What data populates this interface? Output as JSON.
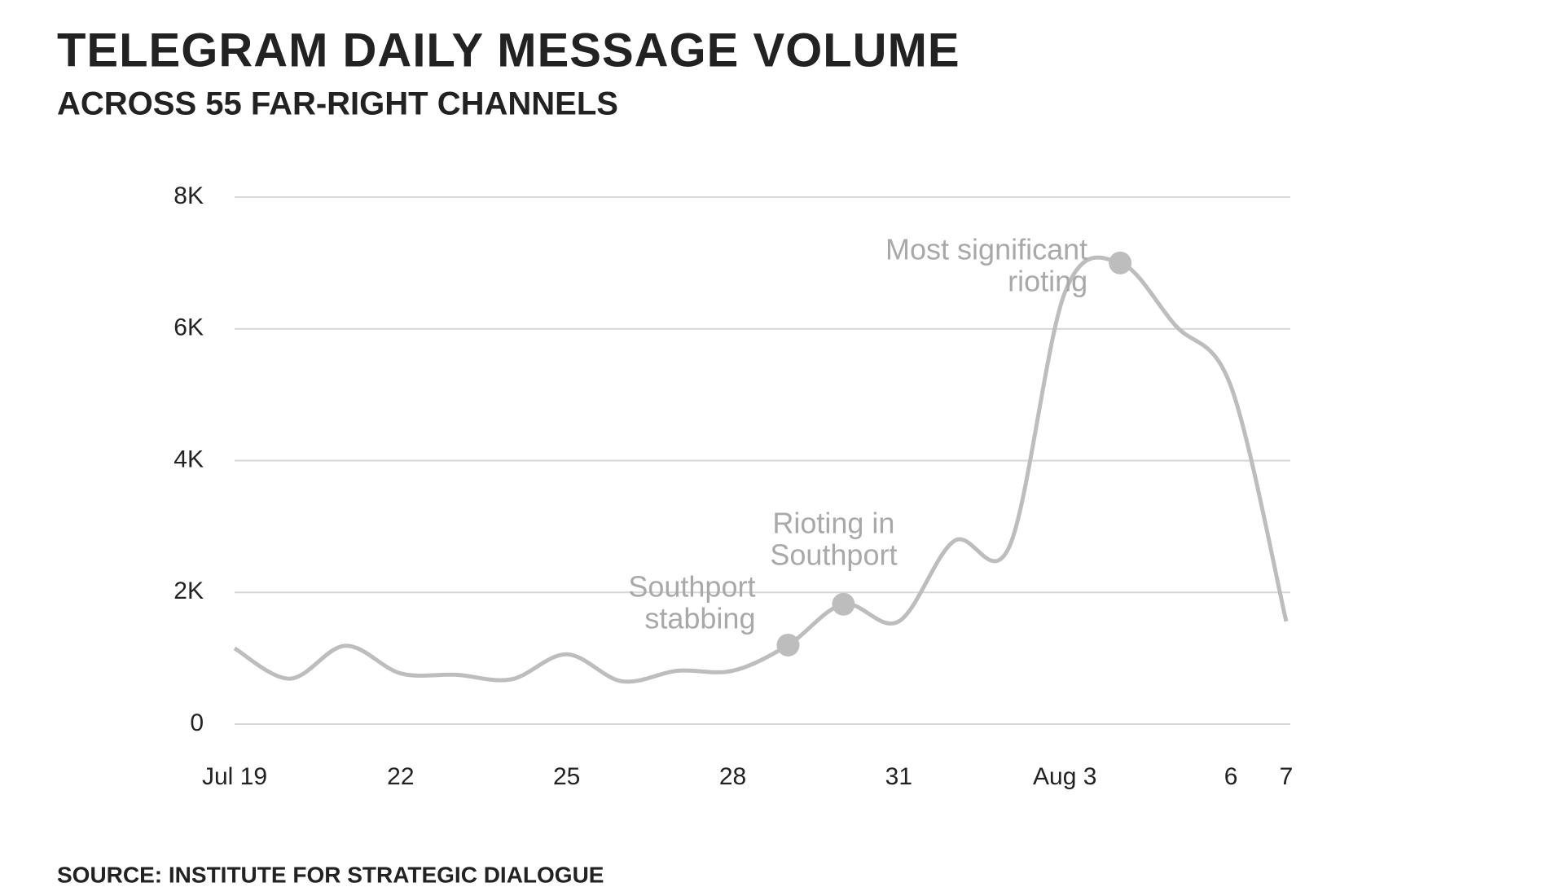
{
  "chart_data": {
    "type": "line",
    "title": "TELEGRAM DAILY MESSAGE VOLUME",
    "subtitle": "ACROSS 55 FAR-RIGHT CHANNELS",
    "source": "SOURCE: INSTITUTE FOR STRATEGIC DIALOGUE",
    "categories": [
      "Jul 19",
      null,
      null,
      "22",
      null,
      null,
      "25",
      null,
      null,
      "28",
      null,
      null,
      "31",
      null,
      null,
      "Aug 3",
      null,
      null,
      "6",
      "7"
    ],
    "series": [
      {
        "color": "#bdbdbd",
        "values": [
          1150,
          690,
          1190,
          770,
          750,
          680,
          1060,
          650,
          810,
          810,
          1200,
          1820,
          1560,
          2780,
          2700,
          6550,
          7000,
          6050,
          5130,
          1560
        ]
      }
    ],
    "annotations": [
      {
        "point": 10,
        "lines": [
          "Southport",
          "stabbing"
        ]
      },
      {
        "point": 11,
        "lines": [
          "Rioting in",
          "Southport"
        ]
      },
      {
        "point": 16,
        "lines": [
          "Most significant",
          "rioting"
        ]
      }
    ],
    "ylim": [
      0,
      8000
    ],
    "yticks": [
      0,
      {
        "value": 2000,
        "label": "2K"
      },
      {
        "value": 4000,
        "label": "4K"
      },
      {
        "value": 6000,
        "label": "6K"
      },
      {
        "value": 8000,
        "label": "8K"
      }
    ],
    "grid": true
  }
}
